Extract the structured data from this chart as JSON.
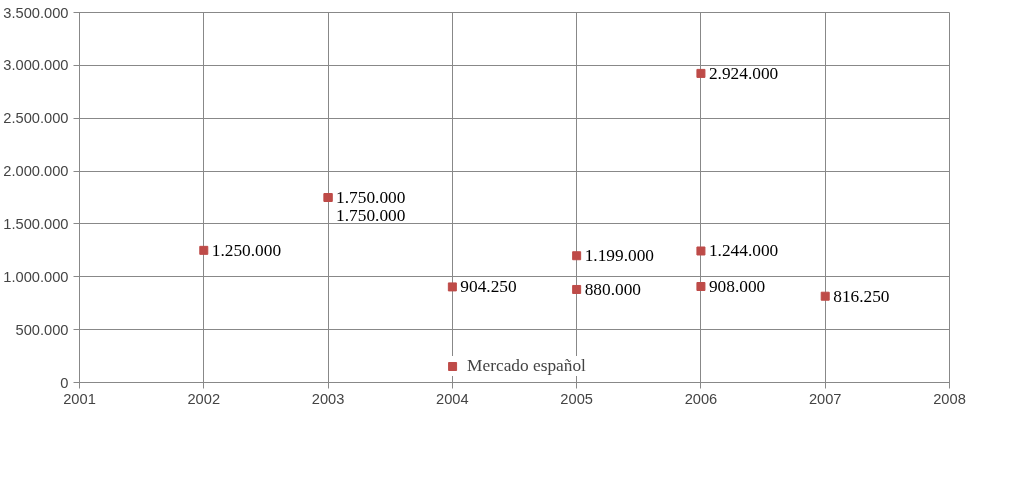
{
  "chart_data": {
    "type": "scatter",
    "x": [
      2002,
      2003,
      2003,
      2004,
      2005,
      2005,
      2006,
      2006,
      2006,
      2007
    ],
    "series": [
      {
        "name": "Mercado español",
        "color": "#be4b48",
        "values": [
          1250000,
          1750000,
          1750000,
          904250,
          1199000,
          880000,
          2924000,
          1244000,
          908000,
          816250
        ],
        "value_labels": [
          "1.250.000",
          "1.750.000",
          "1.750.000",
          "904.250",
          "1.199.000",
          "880.000",
          "2.924.000",
          "1.244.000",
          "908.000",
          "816.250"
        ]
      }
    ],
    "xlim": [
      2001,
      2008
    ],
    "xticks": [
      2001,
      2002,
      2003,
      2004,
      2005,
      2006,
      2007,
      2008
    ],
    "ylim": [
      0,
      3500000
    ],
    "yticks": [
      0,
      {
        "value": 500000,
        "label": "500.000"
      },
      {
        "value": 1000000,
        "label": "1.000.000"
      },
      {
        "value": 1500000,
        "label": "1.500.000"
      },
      {
        "value": 2000000,
        "label": "2.000.000"
      },
      {
        "value": 2500000,
        "label": "2.500.000"
      },
      {
        "value": 3000000,
        "label": "3.000.000"
      },
      {
        "value": 3500000,
        "label": "3.500.000"
      }
    ],
    "grid": true,
    "legend": "bottom",
    "marker": "square"
  }
}
